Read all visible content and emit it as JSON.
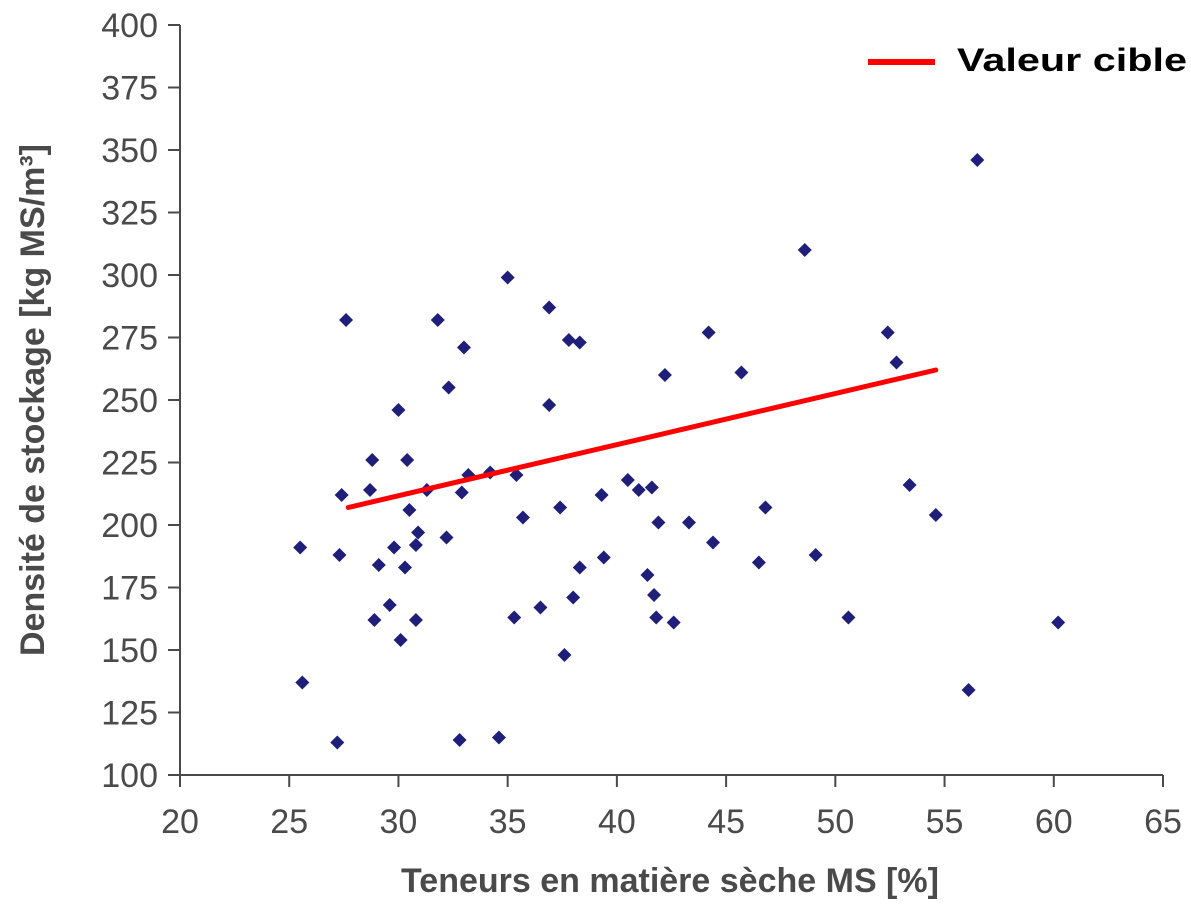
{
  "chart_data": {
    "type": "scatter",
    "title": "",
    "xlabel": "Teneurs en matière sèche MS [%]",
    "ylabel": "Densité de stockage [kg MS/m³]",
    "xlim": [
      20,
      65
    ],
    "ylim": [
      100,
      400
    ],
    "xticks": [
      20,
      25,
      30,
      35,
      40,
      45,
      50,
      55,
      60,
      65
    ],
    "yticks": [
      100,
      125,
      150,
      175,
      200,
      225,
      250,
      275,
      300,
      325,
      350,
      375,
      400
    ],
    "grid": false,
    "legend": {
      "position": "top-right",
      "entries": [
        {
          "name": "Valeur cible",
          "color": "#ff0000",
          "kind": "line"
        }
      ]
    },
    "series": [
      {
        "kind": "points",
        "color": "#1f1f7a",
        "marker": "diamond",
        "points": [
          [
            25.5,
            191
          ],
          [
            25.6,
            137
          ],
          [
            27.2,
            113
          ],
          [
            27.3,
            188
          ],
          [
            27.4,
            212
          ],
          [
            27.6,
            282
          ],
          [
            28.7,
            214
          ],
          [
            28.8,
            226
          ],
          [
            28.9,
            162
          ],
          [
            29.1,
            184
          ],
          [
            29.6,
            168
          ],
          [
            29.8,
            191
          ],
          [
            30.0,
            246
          ],
          [
            30.1,
            154
          ],
          [
            30.3,
            183
          ],
          [
            30.4,
            226
          ],
          [
            30.5,
            206
          ],
          [
            30.8,
            162
          ],
          [
            30.8,
            192
          ],
          [
            30.9,
            197
          ],
          [
            31.3,
            214
          ],
          [
            31.8,
            282
          ],
          [
            32.2,
            195
          ],
          [
            32.3,
            255
          ],
          [
            32.8,
            114
          ],
          [
            32.9,
            213
          ],
          [
            33.0,
            271
          ],
          [
            33.2,
            220
          ],
          [
            34.2,
            221
          ],
          [
            34.6,
            115
          ],
          [
            35.0,
            299
          ],
          [
            35.3,
            163
          ],
          [
            35.4,
            220
          ],
          [
            35.7,
            203
          ],
          [
            36.5,
            167
          ],
          [
            36.9,
            287
          ],
          [
            36.9,
            248
          ],
          [
            37.4,
            207
          ],
          [
            37.6,
            148
          ],
          [
            37.8,
            274
          ],
          [
            38.0,
            171
          ],
          [
            38.3,
            273
          ],
          [
            38.3,
            183
          ],
          [
            39.3,
            212
          ],
          [
            39.4,
            187
          ],
          [
            40.5,
            218
          ],
          [
            41.0,
            214
          ],
          [
            41.4,
            180
          ],
          [
            41.6,
            215
          ],
          [
            41.7,
            172
          ],
          [
            41.8,
            163
          ],
          [
            41.9,
            201
          ],
          [
            42.2,
            260
          ],
          [
            42.6,
            161
          ],
          [
            43.3,
            201
          ],
          [
            44.2,
            277
          ],
          [
            44.4,
            193
          ],
          [
            45.7,
            261
          ],
          [
            46.5,
            185
          ],
          [
            46.8,
            207
          ],
          [
            48.6,
            310
          ],
          [
            49.1,
            188
          ],
          [
            50.6,
            163
          ],
          [
            52.4,
            277
          ],
          [
            52.8,
            265
          ],
          [
            53.4,
            216
          ],
          [
            54.6,
            204
          ],
          [
            56.1,
            134
          ],
          [
            56.5,
            346
          ],
          [
            60.2,
            161
          ]
        ]
      },
      {
        "name": "Valeur cible",
        "kind": "line",
        "color": "#ff0000",
        "points": [
          [
            27.7,
            207
          ],
          [
            54.6,
            262
          ]
        ]
      }
    ]
  }
}
